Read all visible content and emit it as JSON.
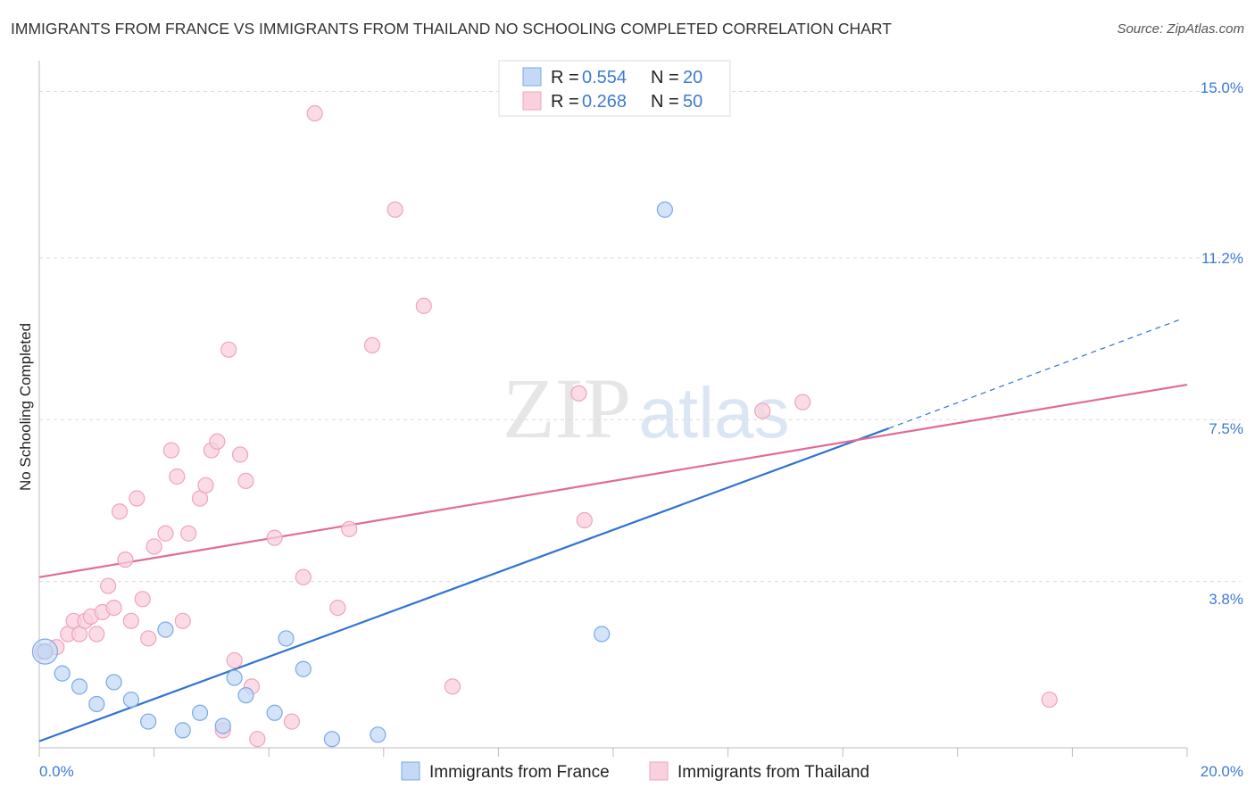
{
  "title": "IMMIGRANTS FROM FRANCE VS IMMIGRANTS FROM THAILAND NO SCHOOLING COMPLETED CORRELATION CHART",
  "source": "Source: ZipAtlas.com",
  "watermark": {
    "zip": "ZIP",
    "atlas": "atlas"
  },
  "chart_data": {
    "type": "scatter",
    "ylabel": "No Schooling Completed",
    "xlim": [
      0,
      20
    ],
    "ylim": [
      0,
      15.5
    ],
    "x_tick_labels": {
      "left": "0.0%",
      "right": "20.0%"
    },
    "y_ticks": [
      {
        "value": 3.8,
        "label": "3.8%"
      },
      {
        "value": 7.5,
        "label": "7.5%"
      },
      {
        "value": 11.2,
        "label": "11.2%"
      },
      {
        "value": 15.0,
        "label": "15.0%"
      }
    ],
    "legend": [
      {
        "r_label": "R = ",
        "r_value": "0.554",
        "n_label": "N = ",
        "n_value": "20"
      },
      {
        "r_label": "R = ",
        "r_value": "0.268",
        "n_label": "N = ",
        "n_value": "50"
      }
    ],
    "series": [
      {
        "name": "Immigrants from France",
        "color": "#7aa9e8",
        "fill": "#c4d9f5",
        "line_color": "#2f73d0",
        "trend": {
          "x0": 0,
          "y0": 0.15,
          "x1": 14.8,
          "y1": 7.3,
          "dash_to_x": 19.9,
          "dash_to_y": 9.8
        },
        "points": [
          [
            0.1,
            2.2
          ],
          [
            0.4,
            1.7
          ],
          [
            0.7,
            1.4
          ],
          [
            1.0,
            1.0
          ],
          [
            1.3,
            1.5
          ],
          [
            1.6,
            1.1
          ],
          [
            1.9,
            0.6
          ],
          [
            2.2,
            2.7
          ],
          [
            2.5,
            0.4
          ],
          [
            2.8,
            0.8
          ],
          [
            3.2,
            0.5
          ],
          [
            3.4,
            1.6
          ],
          [
            3.6,
            1.2
          ],
          [
            4.1,
            0.8
          ],
          [
            4.3,
            2.5
          ],
          [
            4.6,
            1.8
          ],
          [
            5.1,
            0.2
          ],
          [
            5.9,
            0.3
          ],
          [
            9.8,
            2.6
          ],
          [
            10.9,
            12.3
          ]
        ]
      },
      {
        "name": "Immigrants from Thailand",
        "color": "#f0a3bc",
        "fill": "#f9d0de",
        "line_color": "#e06b95",
        "trend": {
          "x0": 0,
          "y0": 3.9,
          "x1": 20,
          "y1": 8.3
        },
        "points": [
          [
            0.1,
            2.2
          ],
          [
            0.3,
            2.3
          ],
          [
            0.5,
            2.6
          ],
          [
            0.6,
            2.9
          ],
          [
            0.7,
            2.6
          ],
          [
            0.8,
            2.9
          ],
          [
            0.9,
            3.0
          ],
          [
            1.0,
            2.6
          ],
          [
            1.1,
            3.1
          ],
          [
            1.2,
            3.7
          ],
          [
            1.3,
            3.2
          ],
          [
            1.4,
            5.4
          ],
          [
            1.5,
            4.3
          ],
          [
            1.6,
            2.9
          ],
          [
            1.7,
            5.7
          ],
          [
            1.8,
            3.4
          ],
          [
            1.9,
            2.5
          ],
          [
            2.0,
            4.6
          ],
          [
            2.2,
            4.9
          ],
          [
            2.3,
            6.8
          ],
          [
            2.4,
            6.2
          ],
          [
            2.5,
            2.9
          ],
          [
            2.6,
            4.9
          ],
          [
            2.8,
            5.7
          ],
          [
            2.9,
            6.0
          ],
          [
            3.0,
            6.8
          ],
          [
            3.1,
            7.0
          ],
          [
            3.2,
            0.4
          ],
          [
            3.3,
            9.1
          ],
          [
            3.4,
            2.0
          ],
          [
            3.5,
            6.7
          ],
          [
            3.6,
            6.1
          ],
          [
            3.7,
            1.4
          ],
          [
            3.8,
            0.2
          ],
          [
            4.1,
            4.8
          ],
          [
            4.4,
            0.6
          ],
          [
            4.6,
            3.9
          ],
          [
            4.8,
            14.5
          ],
          [
            5.2,
            3.2
          ],
          [
            5.4,
            5.0
          ],
          [
            5.8,
            9.2
          ],
          [
            6.2,
            12.3
          ],
          [
            6.7,
            10.1
          ],
          [
            7.2,
            1.4
          ],
          [
            9.4,
            8.1
          ],
          [
            9.5,
            5.2
          ],
          [
            12.6,
            7.7
          ],
          [
            13.3,
            7.9
          ],
          [
            17.6,
            1.1
          ],
          [
            0.05,
            2.2
          ]
        ]
      }
    ]
  }
}
